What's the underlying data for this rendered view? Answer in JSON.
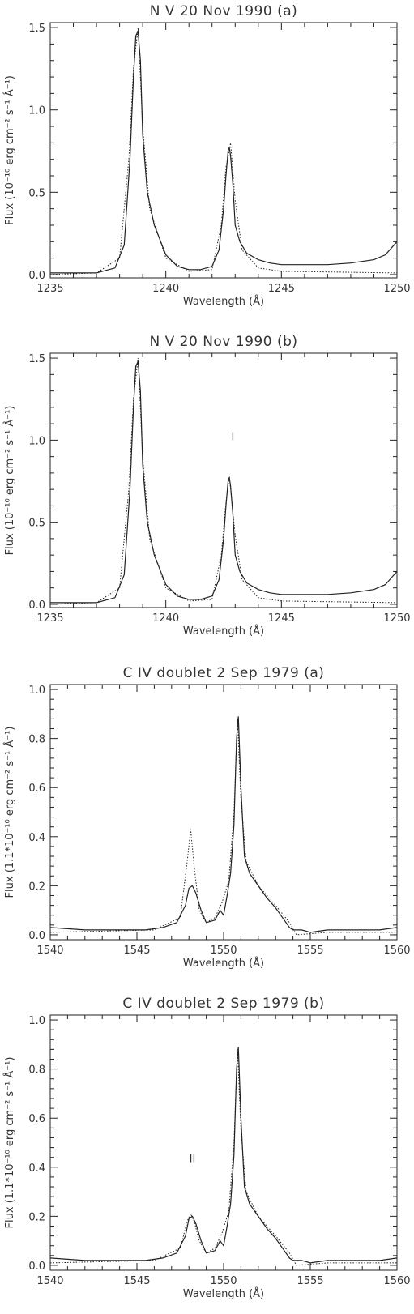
{
  "chart_data": [
    {
      "type": "line",
      "title": "N V 20 Nov 1990 (a)",
      "xlabel": "Wavelength (Å)",
      "ylabel": "Flux (10⁻¹⁰ erg cm⁻² s⁻¹ Å⁻¹)",
      "xlim": [
        1235,
        1250
      ],
      "ylim": [
        -0.02,
        1.53
      ],
      "xticks": [
        1235,
        1240,
        1245,
        1250
      ],
      "yticks": [
        0.0,
        0.5,
        1.0,
        1.5
      ],
      "ytick_labels": [
        "0.0",
        "0.5",
        "1.0",
        "1.5"
      ],
      "grid": false,
      "annotation": "",
      "series": [
        {
          "style": "solid",
          "x": [
            1235.0,
            1236.0,
            1237.0,
            1237.8,
            1238.2,
            1238.45,
            1238.6,
            1238.7,
            1238.8,
            1238.9,
            1239.0,
            1239.2,
            1239.5,
            1240.0,
            1240.5,
            1241.0,
            1241.5,
            1242.0,
            1242.3,
            1242.5,
            1242.6,
            1242.7,
            1242.75,
            1242.8,
            1242.9,
            1243.0,
            1243.2,
            1243.5,
            1244.0,
            1244.5,
            1245.0,
            1246.0,
            1247.0,
            1248.0,
            1249.0,
            1249.5,
            1250.0
          ],
          "y": [
            0.01,
            0.01,
            0.01,
            0.04,
            0.18,
            0.7,
            1.2,
            1.45,
            1.48,
            1.3,
            0.85,
            0.5,
            0.3,
            0.12,
            0.05,
            0.03,
            0.03,
            0.05,
            0.15,
            0.4,
            0.6,
            0.76,
            0.77,
            0.72,
            0.55,
            0.3,
            0.2,
            0.13,
            0.09,
            0.07,
            0.06,
            0.06,
            0.06,
            0.07,
            0.09,
            0.12,
            0.2
          ]
        },
        {
          "style": "dotted",
          "x": [
            1235.0,
            1237.0,
            1238.0,
            1238.4,
            1238.6,
            1238.8,
            1239.0,
            1239.3,
            1240.0,
            1241.0,
            1242.0,
            1242.4,
            1242.6,
            1242.8,
            1243.0,
            1243.3,
            1244.0,
            1245.0,
            1250.0
          ],
          "y": [
            0.0,
            0.01,
            0.1,
            0.7,
            1.25,
            1.5,
            0.9,
            0.4,
            0.1,
            0.02,
            0.03,
            0.3,
            0.65,
            0.8,
            0.45,
            0.15,
            0.04,
            0.02,
            0.01
          ]
        }
      ]
    },
    {
      "type": "line",
      "title": "N V 20 Nov 1990 (b)",
      "xlabel": "Wavelength (Å)",
      "ylabel": "Flux (10⁻¹⁰ erg cm⁻² s⁻¹ Å⁻¹)",
      "xlim": [
        1235,
        1250
      ],
      "ylim": [
        -0.02,
        1.53
      ],
      "xticks": [
        1235,
        1240,
        1245,
        1250
      ],
      "yticks": [
        0.0,
        0.5,
        1.0,
        1.5
      ],
      "ytick_labels": [
        "0.0",
        "0.5",
        "1.0",
        "1.5"
      ],
      "grid": false,
      "annotation": "I",
      "annotation_pos": [
        1242.9,
        1.0
      ],
      "series": [
        {
          "style": "solid",
          "x": [
            1235.0,
            1236.0,
            1237.0,
            1237.8,
            1238.2,
            1238.45,
            1238.6,
            1238.7,
            1238.8,
            1238.9,
            1239.0,
            1239.2,
            1239.5,
            1240.0,
            1240.5,
            1241.0,
            1241.5,
            1242.0,
            1242.3,
            1242.5,
            1242.6,
            1242.7,
            1242.75,
            1242.8,
            1242.9,
            1243.0,
            1243.2,
            1243.5,
            1244.0,
            1244.5,
            1245.0,
            1246.0,
            1247.0,
            1248.0,
            1249.0,
            1249.5,
            1250.0
          ],
          "y": [
            0.01,
            0.01,
            0.01,
            0.04,
            0.18,
            0.7,
            1.2,
            1.45,
            1.48,
            1.3,
            0.85,
            0.5,
            0.3,
            0.12,
            0.05,
            0.03,
            0.03,
            0.05,
            0.15,
            0.4,
            0.6,
            0.76,
            0.77,
            0.72,
            0.55,
            0.3,
            0.2,
            0.13,
            0.09,
            0.07,
            0.06,
            0.06,
            0.06,
            0.07,
            0.09,
            0.12,
            0.2
          ]
        },
        {
          "style": "dotted",
          "x": [
            1235.0,
            1237.0,
            1238.0,
            1238.4,
            1238.6,
            1238.8,
            1239.0,
            1239.3,
            1240.0,
            1241.0,
            1242.0,
            1242.4,
            1242.6,
            1242.75,
            1243.0,
            1243.3,
            1244.0,
            1245.0,
            1250.0
          ],
          "y": [
            0.0,
            0.01,
            0.1,
            0.7,
            1.25,
            1.5,
            0.9,
            0.4,
            0.1,
            0.02,
            0.03,
            0.3,
            0.62,
            0.78,
            0.42,
            0.15,
            0.04,
            0.02,
            0.01
          ]
        }
      ]
    },
    {
      "type": "line",
      "title": "C IV doublet 2 Sep 1979 (a)",
      "xlabel": "Wavelength (Å)",
      "ylabel": "Flux (1.1*10⁻¹⁰ erg cm⁻² s⁻¹ Å⁻¹)",
      "xlim": [
        1540,
        1560
      ],
      "ylim": [
        -0.02,
        1.02
      ],
      "xticks": [
        1540,
        1545,
        1550,
        1555,
        1560
      ],
      "yticks": [
        0.0,
        0.2,
        0.4,
        0.6,
        0.8,
        1.0
      ],
      "ytick_labels": [
        "0.0",
        "0.2",
        "0.4",
        "0.6",
        "0.8",
        "1.0"
      ],
      "grid": false,
      "annotation": "",
      "series": [
        {
          "style": "solid",
          "x": [
            1540.0,
            1542.0,
            1544.0,
            1545.5,
            1546.5,
            1547.3,
            1547.8,
            1548.0,
            1548.2,
            1548.4,
            1548.7,
            1549.0,
            1549.5,
            1549.8,
            1550.0,
            1550.2,
            1550.4,
            1550.6,
            1550.75,
            1550.85,
            1551.0,
            1551.2,
            1551.5,
            1552.0,
            1552.5,
            1553.0,
            1553.5,
            1553.8,
            1554.0,
            1554.5,
            1555.0,
            1556.0,
            1557.0,
            1558.0,
            1559.0,
            1560.0
          ],
          "y": [
            0.03,
            0.02,
            0.02,
            0.02,
            0.03,
            0.05,
            0.12,
            0.19,
            0.2,
            0.17,
            0.1,
            0.05,
            0.06,
            0.1,
            0.08,
            0.16,
            0.25,
            0.45,
            0.8,
            0.89,
            0.6,
            0.32,
            0.25,
            0.2,
            0.15,
            0.11,
            0.06,
            0.03,
            0.02,
            0.02,
            0.01,
            0.02,
            0.02,
            0.02,
            0.02,
            0.03
          ]
        },
        {
          "style": "dotted",
          "x": [
            1540.0,
            1546.0,
            1547.5,
            1547.9,
            1548.1,
            1548.3,
            1548.6,
            1549.0,
            1549.5,
            1549.9,
            1550.3,
            1550.6,
            1550.8,
            1551.0,
            1551.3,
            1552.0,
            1553.0,
            1553.8,
            1554.2,
            1556.0,
            1560.0
          ],
          "y": [
            0.01,
            0.02,
            0.07,
            0.3,
            0.43,
            0.28,
            0.1,
            0.05,
            0.07,
            0.13,
            0.22,
            0.5,
            0.88,
            0.55,
            0.3,
            0.2,
            0.12,
            0.05,
            0.0,
            0.01,
            0.01
          ]
        }
      ]
    },
    {
      "type": "line",
      "title": "C IV doublet 2 Sep 1979 (b)",
      "xlabel": "Wavelength (Å)",
      "ylabel": "Flux (1.1*10⁻¹⁰ erg cm⁻² s⁻¹ Å⁻¹)",
      "xlim": [
        1540,
        1560
      ],
      "ylim": [
        -0.02,
        1.02
      ],
      "xticks": [
        1540,
        1545,
        1550,
        1555,
        1560
      ],
      "yticks": [
        0.0,
        0.2,
        0.4,
        0.6,
        0.8,
        1.0
      ],
      "ytick_labels": [
        "0.0",
        "0.2",
        "0.4",
        "0.6",
        "0.8",
        "1.0"
      ],
      "grid": false,
      "annotation": "II",
      "annotation_pos": [
        1548.2,
        0.42
      ],
      "series": [
        {
          "style": "solid",
          "x": [
            1540.0,
            1542.0,
            1544.0,
            1545.5,
            1546.5,
            1547.3,
            1547.8,
            1548.0,
            1548.2,
            1548.4,
            1548.7,
            1549.0,
            1549.5,
            1549.8,
            1550.0,
            1550.2,
            1550.4,
            1550.6,
            1550.75,
            1550.85,
            1551.0,
            1551.2,
            1551.5,
            1552.0,
            1552.5,
            1553.0,
            1553.5,
            1553.8,
            1554.0,
            1554.5,
            1555.0,
            1556.0,
            1557.0,
            1558.0,
            1559.0,
            1560.0
          ],
          "y": [
            0.03,
            0.02,
            0.02,
            0.02,
            0.03,
            0.05,
            0.12,
            0.19,
            0.2,
            0.17,
            0.1,
            0.05,
            0.06,
            0.1,
            0.08,
            0.16,
            0.25,
            0.45,
            0.8,
            0.89,
            0.6,
            0.32,
            0.25,
            0.2,
            0.15,
            0.11,
            0.06,
            0.03,
            0.02,
            0.02,
            0.01,
            0.02,
            0.02,
            0.02,
            0.02,
            0.03
          ]
        },
        {
          "style": "dotted",
          "x": [
            1540.0,
            1546.0,
            1547.5,
            1547.9,
            1548.1,
            1548.3,
            1548.6,
            1549.0,
            1549.5,
            1549.9,
            1550.3,
            1550.6,
            1550.8,
            1551.0,
            1551.3,
            1552.0,
            1553.0,
            1553.8,
            1554.2,
            1556.0,
            1560.0
          ],
          "y": [
            0.01,
            0.02,
            0.07,
            0.18,
            0.21,
            0.18,
            0.1,
            0.05,
            0.07,
            0.13,
            0.22,
            0.5,
            0.88,
            0.55,
            0.3,
            0.2,
            0.12,
            0.05,
            0.0,
            0.01,
            0.01
          ]
        }
      ]
    }
  ]
}
